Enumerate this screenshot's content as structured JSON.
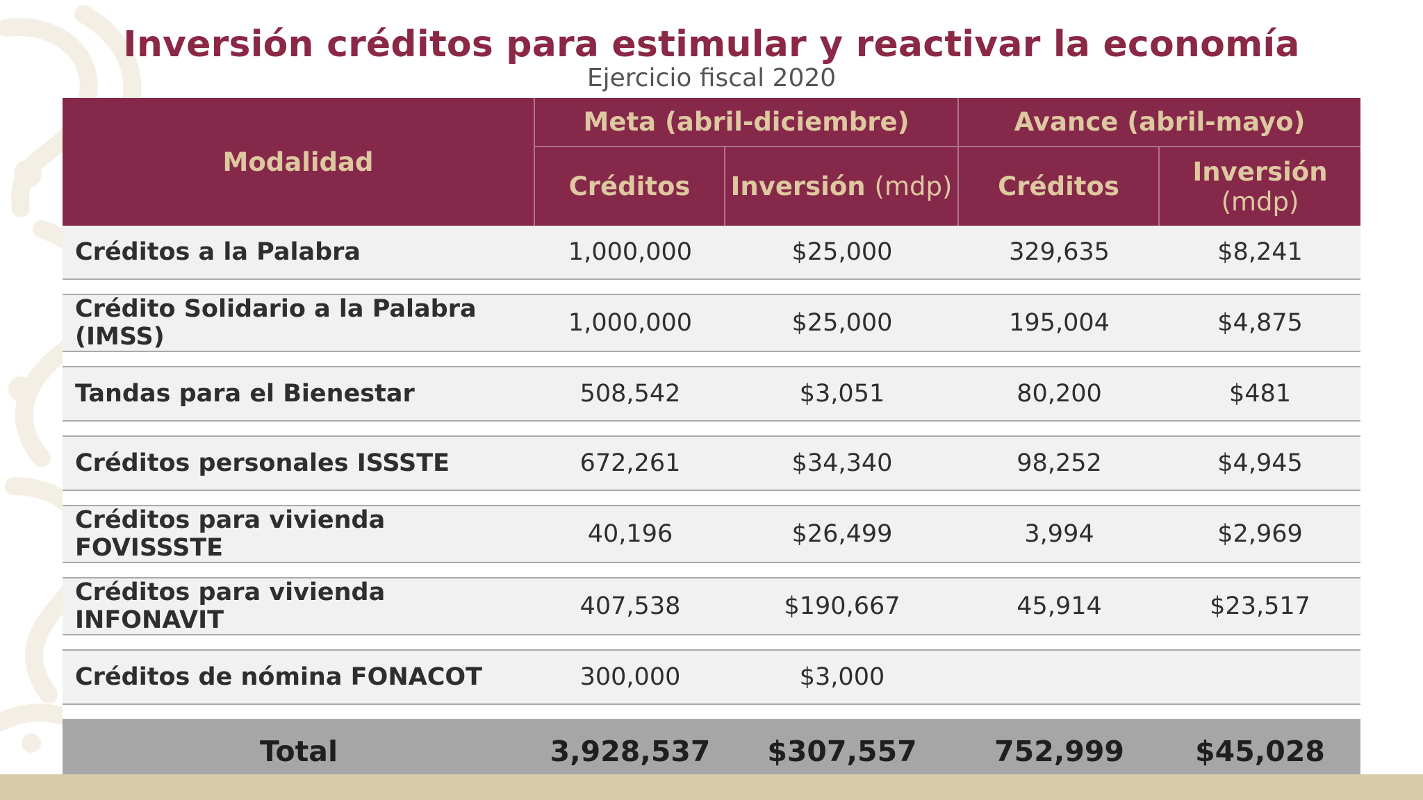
{
  "title": "Inversión créditos para estimular y reactivar la economía",
  "subtitle": "Ejercicio fiscal 2020",
  "colors": {
    "title": "#8a2846",
    "header_bg": "#86284a",
    "header_text": "#ddc8a0",
    "band": "#d9ccaa",
    "pattern": "#f4efe4"
  },
  "table": {
    "header": {
      "modalidad": "Modalidad",
      "meta": "Meta (abril-diciembre)",
      "avance": "Avance (abril-mayo)",
      "creditos": "Créditos",
      "inversion": "Inversión",
      "unit": "(mdp)"
    },
    "rows": [
      {
        "modalidad": "Créditos a la Palabra",
        "meta_creditos": "1,000,000",
        "meta_inversion": "$25,000",
        "avance_creditos": "329,635",
        "avance_inversion": "$8,241"
      },
      {
        "modalidad": "Crédito Solidario a la Palabra (IMSS)",
        "meta_creditos": "1,000,000",
        "meta_inversion": "$25,000",
        "avance_creditos": "195,004",
        "avance_inversion": "$4,875"
      },
      {
        "modalidad": "Tandas para el Bienestar",
        "meta_creditos": "508,542",
        "meta_inversion": "$3,051",
        "avance_creditos": "80,200",
        "avance_inversion": "$481"
      },
      {
        "modalidad": "Créditos personales ISSSTE",
        "meta_creditos": "672,261",
        "meta_inversion": "$34,340",
        "avance_creditos": "98,252",
        "avance_inversion": "$4,945"
      },
      {
        "modalidad": "Créditos para vivienda FOVISSSTE",
        "meta_creditos": "40,196",
        "meta_inversion": "$26,499",
        "avance_creditos": "3,994",
        "avance_inversion": "$2,969"
      },
      {
        "modalidad": "Créditos para vivienda INFONAVIT",
        "meta_creditos": "407,538",
        "meta_inversion": "$190,667",
        "avance_creditos": "45,914",
        "avance_inversion": "$23,517"
      },
      {
        "modalidad": "Créditos de nómina FONACOT",
        "meta_creditos": "300,000",
        "meta_inversion": "$3,000",
        "avance_creditos": "",
        "avance_inversion": ""
      }
    ],
    "total": {
      "label": "Total",
      "meta_creditos": "3,928,537",
      "meta_inversion": "$307,557",
      "avance_creditos": "752,999",
      "avance_inversion": "$45,028"
    }
  }
}
